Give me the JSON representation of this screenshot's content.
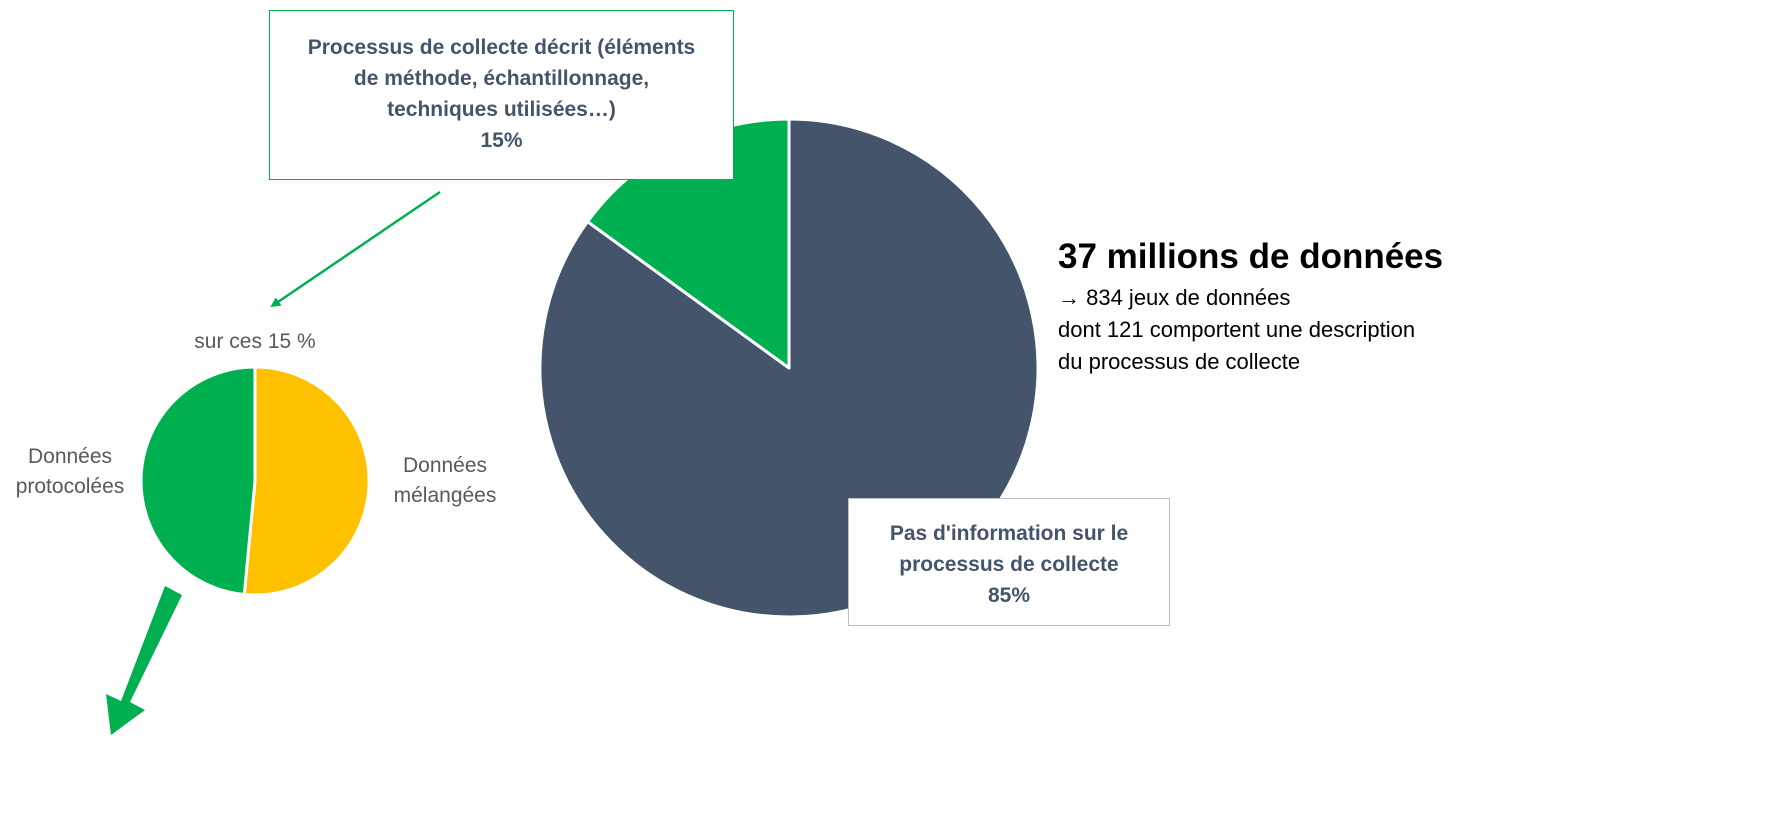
{
  "chart_data": [
    {
      "type": "pie",
      "slices": [
        {
          "label": "Pas d'information sur le processus de collecte",
          "value": 85,
          "value_label": "85%",
          "color": "#44546a"
        },
        {
          "label": "Processus de collecte décrit (éléments de méthode, échantillonnage, techniques utilisées…)",
          "value": 15,
          "value_label": "15%",
          "color": "#00b050"
        }
      ]
    },
    {
      "type": "pie",
      "title": "sur ces 15 %",
      "slices": [
        {
          "label": "Données mélangées",
          "value": 51.5,
          "color": "#ffc000"
        },
        {
          "label": "Données protocolées",
          "value": 48.5,
          "color": "#00b050"
        }
      ]
    }
  ],
  "callouts": {
    "described": {
      "lines": [
        "Processus de collecte décrit (éléments",
        "de méthode, échantillonnage,",
        "techniques utilisées…)"
      ],
      "value": "15%",
      "border_color": "#00b050"
    },
    "no_info": {
      "lines": [
        "Pas d'information sur le",
        "processus de collecte"
      ],
      "value": "85%",
      "border_color": "#bfbfbf"
    }
  },
  "small_labels": {
    "subtitle": "sur ces 15 %",
    "protocolees": [
      "Données",
      "protocolées"
    ],
    "melangees": [
      "Données",
      "mélangées"
    ]
  },
  "summary": {
    "headline": "37 millions de données",
    "lines": [
      "→ 834 jeux de données",
      "dont 121 comportent une description",
      "du processus de collecte"
    ]
  },
  "colors": {
    "text_dark": "#44546a",
    "text_gray": "#595959",
    "arrow_green": "#00b050"
  }
}
